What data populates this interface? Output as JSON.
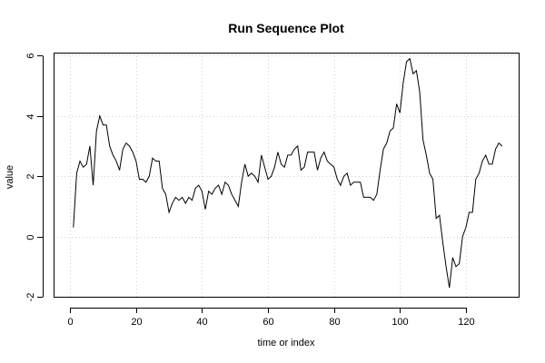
{
  "chart_data": {
    "type": "line",
    "title": "Run Sequence Plot",
    "xlabel": "time or index",
    "ylabel": "value",
    "xlim": [
      -5,
      136
    ],
    "ylim": [
      -2,
      6.1
    ],
    "grid": true,
    "x_ticks": [
      0,
      20,
      40,
      60,
      80,
      100,
      120
    ],
    "y_ticks": [
      -2,
      0,
      2,
      4,
      6
    ],
    "x_tick_labels": [
      "0",
      "20",
      "40",
      "60",
      "80",
      "100",
      "120"
    ],
    "y_tick_labels": [
      "-2",
      "0",
      "2",
      "4",
      "6"
    ],
    "series": [
      {
        "x": [
          1,
          2,
          3,
          4,
          5,
          6,
          7,
          8,
          9,
          10,
          11,
          12,
          13,
          14,
          15,
          16,
          17,
          18,
          19,
          20,
          21,
          22,
          23,
          24,
          25,
          26,
          27,
          28,
          29,
          30,
          31,
          32,
          33,
          34,
          35,
          36,
          37,
          38,
          39,
          40,
          41,
          42,
          43,
          44,
          45,
          46,
          47,
          48,
          49,
          50,
          51,
          52,
          53,
          54,
          55,
          56,
          57,
          58,
          59,
          60,
          61,
          62,
          63,
          64,
          65,
          66,
          67,
          68,
          69,
          70,
          71,
          72,
          73,
          74,
          75,
          76,
          77,
          78,
          79,
          80,
          81,
          82,
          83,
          84,
          85,
          86,
          87,
          88,
          89,
          90,
          91,
          92,
          93,
          94,
          95,
          96,
          97,
          98,
          99,
          100,
          101,
          102,
          103,
          104,
          105,
          106,
          107,
          108,
          109,
          110,
          111,
          112,
          113,
          114,
          115,
          116,
          117,
          118,
          119,
          120,
          121,
          122,
          123,
          124,
          125,
          126,
          127,
          128,
          129,
          130,
          131
        ],
        "values": [
          0.3,
          2.1,
          2.5,
          2.3,
          2.4,
          3.0,
          1.7,
          3.5,
          4.0,
          3.7,
          3.7,
          3.0,
          2.7,
          2.5,
          2.2,
          2.9,
          3.1,
          3.0,
          2.8,
          2.5,
          1.9,
          1.9,
          1.8,
          2.0,
          2.6,
          2.5,
          2.5,
          1.6,
          1.4,
          0.8,
          1.1,
          1.3,
          1.2,
          1.3,
          1.1,
          1.3,
          1.2,
          1.6,
          1.7,
          1.5,
          0.9,
          1.5,
          1.4,
          1.6,
          1.7,
          1.4,
          1.8,
          1.7,
          1.4,
          1.2,
          1.0,
          1.8,
          2.4,
          2.0,
          2.1,
          2.0,
          1.8,
          2.7,
          2.3,
          1.9,
          2.0,
          2.3,
          2.8,
          2.4,
          2.3,
          2.7,
          2.7,
          2.9,
          3.0,
          2.2,
          2.3,
          2.8,
          2.8,
          2.8,
          2.2,
          2.6,
          2.8,
          2.5,
          2.4,
          2.3,
          1.9,
          1.7,
          2.0,
          2.1,
          1.7,
          1.8,
          1.8,
          1.8,
          1.3,
          1.3,
          1.3,
          1.2,
          1.4,
          2.2,
          2.9,
          3.1,
          3.5,
          3.6,
          4.4,
          4.1,
          5.1,
          5.8,
          5.9,
          5.4,
          5.5,
          4.8,
          3.2,
          2.7,
          2.1,
          1.9,
          0.6,
          0.7,
          -0.2,
          -1.0,
          -1.7,
          -0.7,
          -1.0,
          -0.9,
          0.0,
          0.3,
          0.8,
          0.8,
          1.9,
          2.1,
          2.5,
          2.7,
          2.4,
          2.4,
          2.9,
          3.1,
          3.0
        ]
      }
    ]
  }
}
